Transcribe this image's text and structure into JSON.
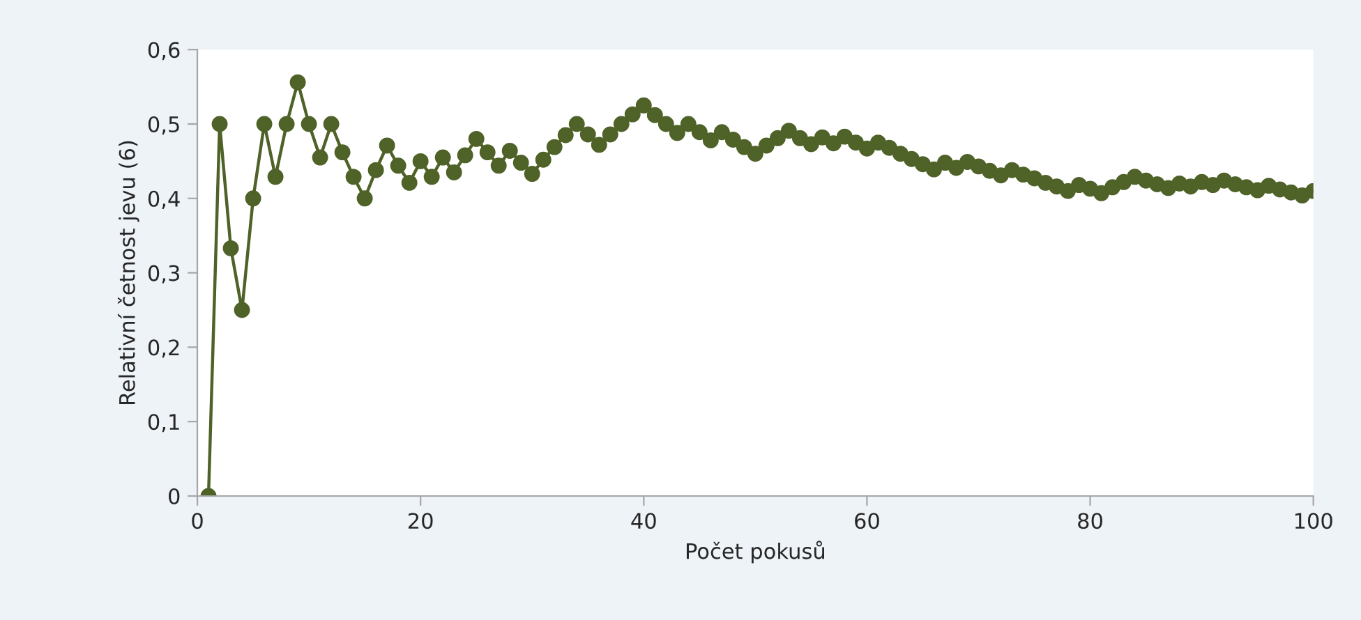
{
  "chart_data": {
    "type": "line",
    "xlabel": "Počet pokusů",
    "ylabel": "Relativní četnost jevu (6)",
    "x": [
      1,
      2,
      3,
      4,
      5,
      6,
      7,
      8,
      9,
      10,
      11,
      12,
      13,
      14,
      15,
      16,
      17,
      18,
      19,
      20,
      21,
      22,
      23,
      24,
      25,
      26,
      27,
      28,
      29,
      30,
      31,
      32,
      33,
      34,
      35,
      36,
      37,
      38,
      39,
      40,
      41,
      42,
      43,
      44,
      45,
      46,
      47,
      48,
      49,
      50,
      51,
      52,
      53,
      54,
      55,
      56,
      57,
      58,
      59,
      60,
      61,
      62,
      63,
      64,
      65,
      66,
      67,
      68,
      69,
      70,
      71,
      72,
      73,
      74,
      75,
      76,
      77,
      78,
      79,
      80,
      81,
      82,
      83,
      84,
      85,
      86,
      87,
      88,
      89,
      90,
      91,
      92,
      93,
      94,
      95,
      96,
      97,
      98,
      99,
      100
    ],
    "series": [
      {
        "color": "#4f6228",
        "values": [
          0,
          0.5,
          0.333,
          0.25,
          0.4,
          0.5,
          0.429,
          0.5,
          0.556,
          0.5,
          0.455,
          0.5,
          0.462,
          0.429,
          0.4,
          0.438,
          0.471,
          0.444,
          0.421,
          0.45,
          0.429,
          0.455,
          0.435,
          0.458,
          0.48,
          0.462,
          0.444,
          0.464,
          0.448,
          0.433,
          0.452,
          0.469,
          0.485,
          0.5,
          0.486,
          0.472,
          0.486,
          0.5,
          0.513,
          0.525,
          0.512,
          0.5,
          0.488,
          0.5,
          0.489,
          0.478,
          0.489,
          0.479,
          0.469,
          0.46,
          0.471,
          0.481,
          0.491,
          0.481,
          0.473,
          0.482,
          0.474,
          0.483,
          0.475,
          0.467,
          0.475,
          0.468,
          0.46,
          0.453,
          0.446,
          0.439,
          0.448,
          0.441,
          0.449,
          0.443,
          0.437,
          0.431,
          0.438,
          0.432,
          0.427,
          0.421,
          0.416,
          0.41,
          0.418,
          0.413,
          0.407,
          0.415,
          0.422,
          0.429,
          0.424,
          0.419,
          0.414,
          0.42,
          0.416,
          0.422,
          0.418,
          0.424,
          0.419,
          0.415,
          0.411,
          0.417,
          0.412,
          0.408,
          0.404,
          0.41
        ]
      }
    ],
    "xlim": [
      0,
      100
    ],
    "xticks": [
      0,
      20,
      40,
      60,
      80,
      100
    ],
    "ylim": [
      0,
      0.6
    ],
    "yticks": [
      {
        "value": 0,
        "label": "0"
      },
      {
        "value": 0.1,
        "label": "0,1"
      },
      {
        "value": 0.2,
        "label": "0,2"
      },
      {
        "value": 0.3,
        "label": "0,3"
      },
      {
        "value": 0.4,
        "label": "0,4"
      },
      {
        "value": 0.5,
        "label": "0,5"
      },
      {
        "value": 0.6,
        "label": "0,6"
      }
    ],
    "marker": "circle",
    "line_style": "solid",
    "grid": false,
    "legend": false
  }
}
